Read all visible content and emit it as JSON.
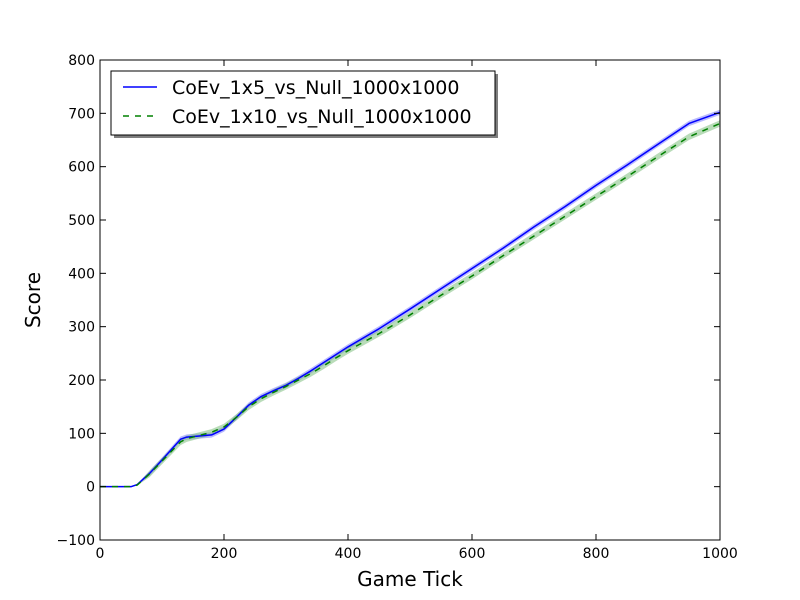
{
  "chart_data": {
    "type": "line",
    "title": "",
    "xlabel": "Game Tick",
    "ylabel": "Score",
    "xlim": [
      0,
      1000
    ],
    "ylim": [
      -100,
      800
    ],
    "xticks": [
      0,
      200,
      400,
      600,
      800,
      1000
    ],
    "xtick_labels": [
      "0",
      "200",
      "400",
      "600",
      "800",
      "1000"
    ],
    "yticks": [
      -100,
      0,
      100,
      200,
      300,
      400,
      500,
      600,
      700,
      800
    ],
    "ytick_labels": [
      "−100",
      "0",
      "100",
      "200",
      "300",
      "400",
      "500",
      "600",
      "700",
      "800"
    ],
    "grid": false,
    "legend_position": "top-left",
    "series": [
      {
        "name": "CoEv_1x5_vs_Null_1000x1000",
        "color": "#0000ff",
        "band_color": "#8080ff",
        "line_style": "solid",
        "band_halfwidth": 5,
        "x": [
          0,
          50,
          60,
          80,
          100,
          120,
          130,
          140,
          160,
          180,
          200,
          220,
          240,
          260,
          280,
          300,
          320,
          340,
          360,
          380,
          400,
          450,
          500,
          550,
          600,
          650,
          700,
          750,
          800,
          850,
          900,
          950,
          1000
        ],
        "y": [
          0,
          0,
          4,
          25,
          50,
          76,
          89,
          93,
          95,
          97,
          108,
          130,
          153,
          169,
          180,
          190,
          203,
          217,
          232,
          247,
          262,
          296,
          333,
          371,
          409,
          447,
          487,
          525,
          565,
          603,
          642,
          681,
          702
        ]
      },
      {
        "name": "CoEv_1x10_vs_Null_1000x1000",
        "color": "#008000",
        "band_color": "#80c080",
        "line_style": "dashed",
        "band_halfwidth": 6,
        "x": [
          0,
          50,
          60,
          80,
          100,
          120,
          130,
          140,
          160,
          180,
          200,
          220,
          240,
          260,
          280,
          300,
          320,
          340,
          360,
          380,
          400,
          450,
          500,
          550,
          600,
          650,
          700,
          750,
          800,
          850,
          900,
          950,
          1000
        ],
        "y": [
          0,
          0,
          3,
          24,
          48,
          72,
          84,
          90,
          96,
          102,
          112,
          130,
          150,
          165,
          177,
          188,
          200,
          212,
          226,
          241,
          255,
          287,
          322,
          359,
          395,
          433,
          470,
          507,
          544,
          581,
          619,
          656,
          681
        ]
      }
    ]
  }
}
